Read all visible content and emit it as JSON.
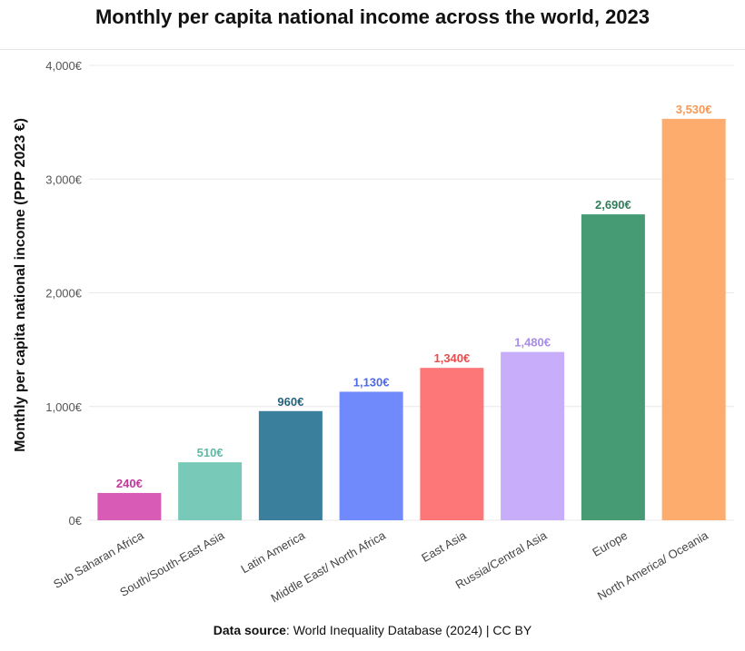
{
  "title": "Monthly per capita national income across the world, 2023",
  "source": {
    "label": "Data source",
    "text": ": World Inequality Database (2024) | CC BY"
  },
  "chart_data": {
    "type": "bar",
    "title": "Monthly per capita national income across the world, 2023",
    "xlabel": "",
    "ylabel": "Monthly per capita national income (PPP 2023 €)",
    "ylim": [
      0,
      4000
    ],
    "yticks": [
      0,
      1000,
      2000,
      3000,
      4000
    ],
    "ytick_labels": [
      "0€",
      "1,000€",
      "2,000€",
      "3,000€",
      "4,000€"
    ],
    "grid": true,
    "categories": [
      "Sub Saharan Africa",
      "South/South-East Asia",
      "Latin America",
      "Middle East/ North Africa",
      "East Asia",
      "Russia/Central Asia",
      "Europe",
      "North America/ Oceania"
    ],
    "values": [
      240,
      510,
      960,
      1130,
      1340,
      1480,
      2690,
      3530
    ],
    "value_labels": [
      "240€",
      "510€",
      "960€",
      "1,130€",
      "1,340€",
      "1,480€",
      "2,690€",
      "3,530€"
    ],
    "colors": [
      "#d85bb6",
      "#78c9b8",
      "#3a7f9b",
      "#7089fb",
      "#fd7778",
      "#c7adfa",
      "#469b75",
      "#feab6e"
    ],
    "label_colors": [
      "#c2389b",
      "#5fb7a4",
      "#24627c",
      "#4f6ae6",
      "#ec4c4d",
      "#a98ce8",
      "#2f7d59",
      "#f59a58"
    ]
  }
}
